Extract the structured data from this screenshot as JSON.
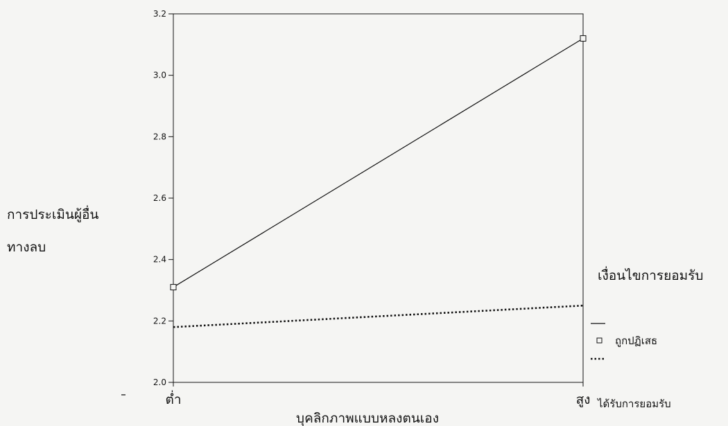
{
  "chart_data": {
    "type": "line",
    "categories": [
      "ต่ำ",
      "สูง"
    ],
    "series": [
      {
        "name": "ถูกปฏิเสธ",
        "values": [
          2.31,
          3.12
        ],
        "style": "solid",
        "marker": "square"
      },
      {
        "name": "ได้รับการยอมรับ",
        "values": [
          2.18,
          2.25
        ],
        "style": "dotted",
        "marker": "none"
      }
    ],
    "xlabel": "บุคลิกภาพแบบหลงตนเอง",
    "ylabel_line1": "การประเมินผู้อื่น",
    "ylabel_line2": "ทางลบ",
    "ylim": [
      2.0,
      3.2
    ],
    "yticks": [
      "2.0",
      "2.2",
      "2.4",
      "2.6",
      "2.8",
      "3.0",
      "3.2"
    ],
    "legend_title": "เงื่อนไขการยอมรับ",
    "legend_position": "right",
    "grid": false,
    "line_color": "#111111"
  }
}
